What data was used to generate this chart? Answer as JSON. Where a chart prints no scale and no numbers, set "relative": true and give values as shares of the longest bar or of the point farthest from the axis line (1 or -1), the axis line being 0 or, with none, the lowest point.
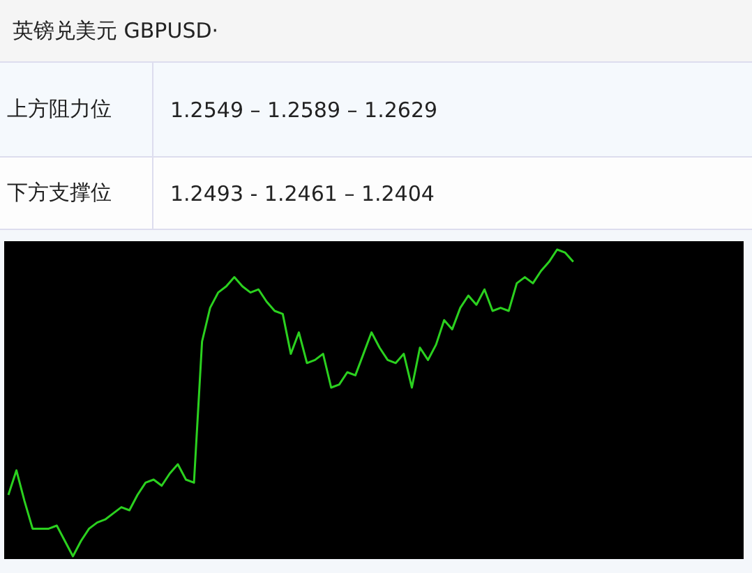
{
  "chart_data": {
    "type": "line",
    "title": "英镑兑美元 GBPUSD·",
    "annotations": [
      "上方阻力位",
      "1.2549 – 1.2589 – 1.2629",
      "下方支撑位",
      "1.2493 - 1.2461 – 1.2404"
    ],
    "relative": true,
    "categories": [
      null,
      null,
      null,
      null,
      null,
      null,
      null,
      null,
      null,
      null,
      null,
      null,
      null,
      null,
      null,
      null,
      null,
      null,
      null,
      null,
      null,
      null,
      null,
      null,
      null,
      null,
      null,
      null,
      null,
      null,
      null,
      null,
      null,
      null,
      null,
      null,
      null,
      null,
      null,
      null,
      null,
      null,
      null,
      null,
      null,
      null,
      null,
      null,
      null,
      null,
      null,
      null,
      null,
      null,
      null,
      null,
      null,
      null,
      null,
      null,
      null,
      null,
      null,
      null,
      null,
      null,
      null,
      null,
      null,
      null,
      null,
      null,
      null,
      null,
      null,
      null,
      null,
      null,
      null,
      null,
      null,
      null,
      null,
      null,
      null,
      null,
      null,
      null,
      null
    ],
    "series": [
      {
        "color": "#2bd11f",
        "values": [
          0.2,
          0.28,
          0.18,
          0.09,
          0.09,
          0.09,
          0.1,
          0.05,
          0,
          0.05,
          0.09,
          0.11,
          0.12,
          0.14,
          0.16,
          0.15,
          0.2,
          0.24,
          0.25,
          0.23,
          0.27,
          0.3,
          0.25,
          0.24,
          0.7,
          0.81,
          0.86,
          0.88,
          0.91,
          0.88,
          0.86,
          0.87,
          0.83,
          0.8,
          0.79,
          0.66,
          0.73,
          0.63,
          0.64,
          0.66,
          0.55,
          0.56,
          0.6,
          0.59,
          0.66,
          0.73,
          0.68,
          0.64,
          0.63,
          0.66,
          0.55,
          0.68,
          0.64,
          0.69,
          0.77,
          0.74,
          0.81,
          0.85,
          0.82,
          0.87,
          0.8,
          0.81,
          0.8,
          0.89,
          0.91,
          0.89,
          0.93,
          0.96,
          1,
          0.99,
          0.96,
          null,
          null,
          null,
          null,
          null,
          null,
          null,
          null,
          null,
          null,
          null,
          null,
          null,
          null,
          null,
          null,
          null,
          null
        ]
      }
    ]
  }
}
